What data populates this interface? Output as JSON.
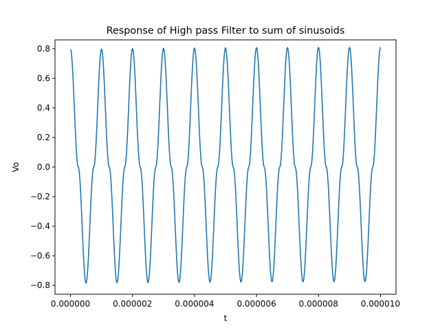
{
  "chart_data": {
    "type": "line",
    "title": "Response of High pass Filter to sum of sinusoids",
    "xlabel": "t",
    "ylabel": "Vo",
    "xlim": [
      -5e-07,
      1.05e-05
    ],
    "ylim": [
      -0.86,
      0.86
    ],
    "grid": false,
    "legend": "none",
    "xticks": [
      {
        "value": 0,
        "label": "0.000000"
      },
      {
        "value": 2e-06,
        "label": "0.000002"
      },
      {
        "value": 4e-06,
        "label": "0.000004"
      },
      {
        "value": 6e-06,
        "label": "0.000006"
      },
      {
        "value": 8e-06,
        "label": "0.000008"
      },
      {
        "value": 1e-05,
        "label": "0.000010"
      }
    ],
    "yticks": [
      {
        "value": -0.8,
        "label": "−0.8"
      },
      {
        "value": -0.6,
        "label": "−0.6"
      },
      {
        "value": -0.4,
        "label": "−0.4"
      },
      {
        "value": -0.2,
        "label": "−0.2"
      },
      {
        "value": 0.0,
        "label": "0.0"
      },
      {
        "value": 0.2,
        "label": "0.2"
      },
      {
        "value": 0.4,
        "label": "0.4"
      },
      {
        "value": 0.6,
        "label": "0.6"
      },
      {
        "value": 0.8,
        "label": "0.8"
      }
    ],
    "series": [
      {
        "color": "#1f77b4",
        "x": [
          0,
          2.5e-07,
          5e-07,
          7.5e-07,
          1e-06,
          1.25e-06,
          1.5e-06,
          1.75e-06,
          2e-06,
          2.25e-06,
          2.5e-06,
          2.75e-06,
          3e-06,
          3.25e-06,
          3.5e-06,
          3.75e-06,
          4e-06,
          4.25e-06,
          4.5e-06,
          4.75e-06,
          5e-06,
          5.25e-06,
          5.5e-06,
          5.75e-06,
          6e-06,
          6.25e-06,
          6.5e-06,
          6.75e-06,
          7e-06,
          7.25e-06,
          7.5e-06,
          7.75e-06,
          8e-06,
          8.25e-06,
          8.5e-06,
          8.75e-06,
          9e-06,
          9.25e-06,
          9.5e-06,
          9.75e-06,
          1e-05
        ],
        "y": [
          0.795,
          0.0,
          -0.785,
          0.0,
          0.798,
          0.0,
          -0.782,
          0.0,
          0.801,
          0.0,
          -0.781,
          0.0,
          0.803,
          0.0,
          -0.78,
          0.0,
          0.805,
          0.0,
          -0.778,
          0.0,
          0.806,
          0.0,
          -0.777,
          0.0,
          0.807,
          0.0,
          -0.776,
          0.0,
          0.808,
          0.0,
          -0.776,
          0.0,
          0.809,
          0.0,
          -0.775,
          0.0,
          0.809,
          0.0,
          -0.775,
          0.0,
          0.81
        ]
      }
    ]
  }
}
